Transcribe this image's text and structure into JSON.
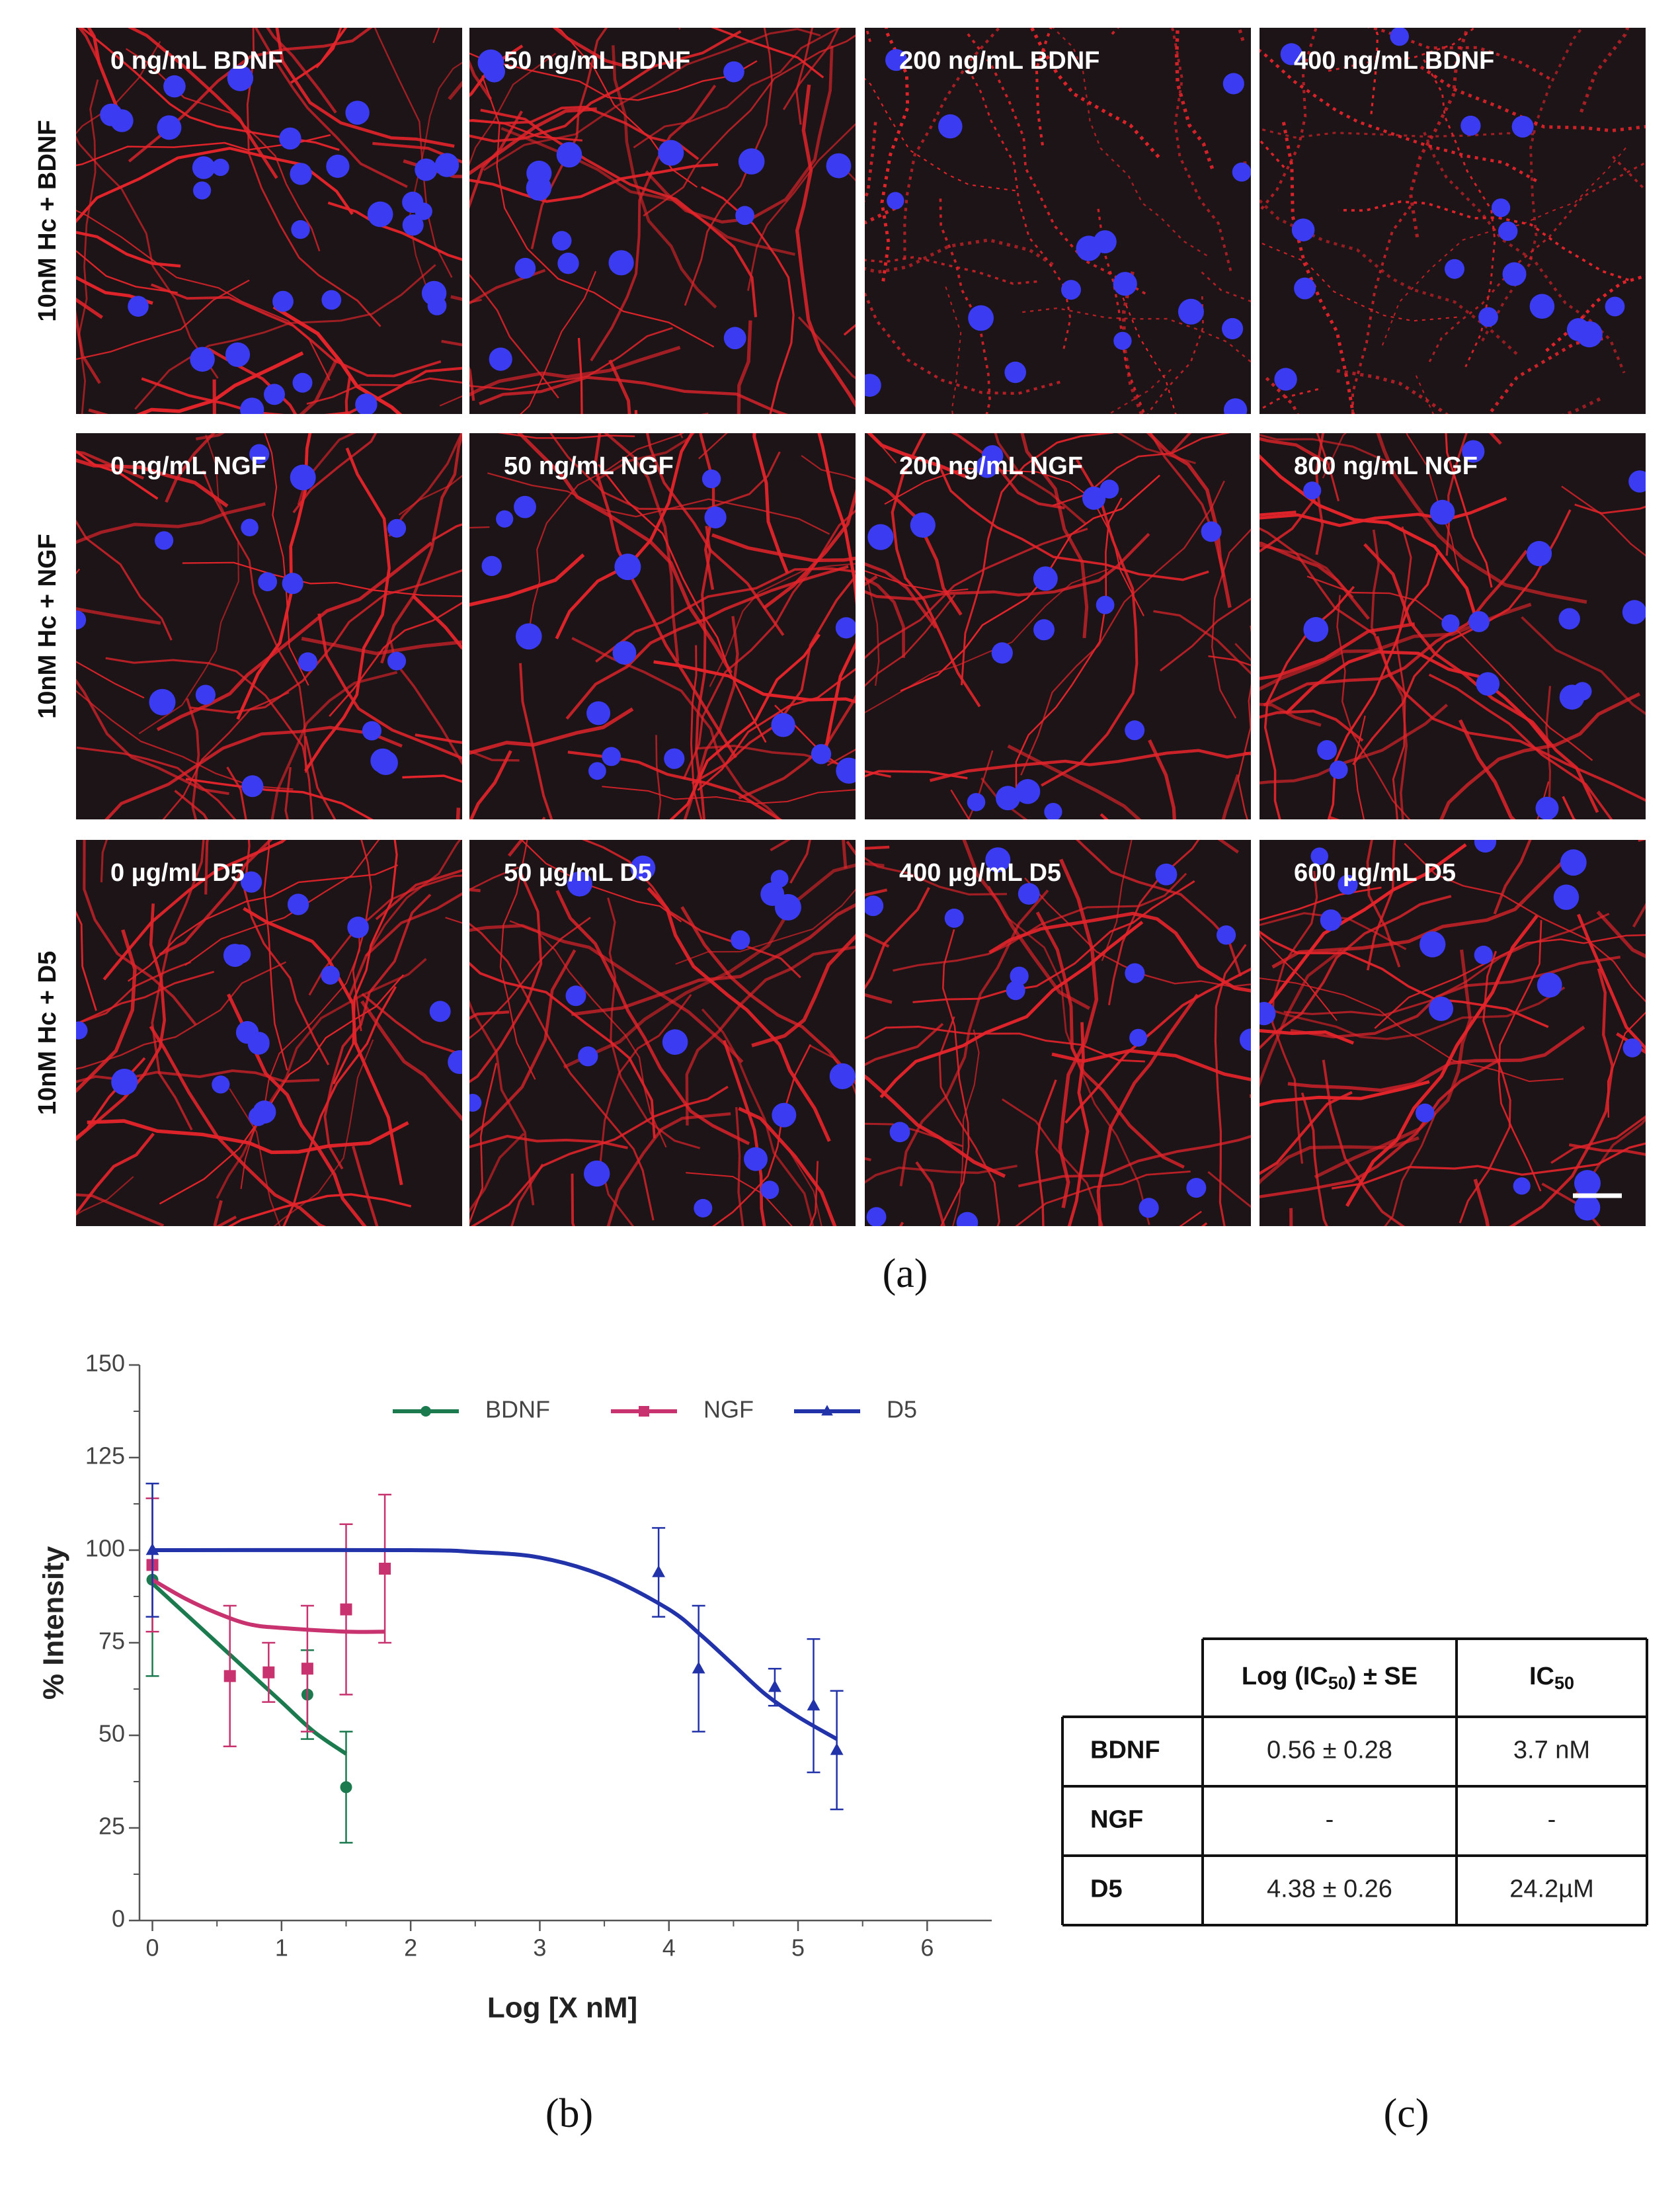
{
  "figure": {
    "panel_a": {
      "caption": "(a)",
      "rows": [
        {
          "label": "10nM Hc + BDNF",
          "images": [
            "0 ng/mL BDNF",
            "50 ng/mL BDNF",
            "200 ng/mL BDNF",
            "400 ng/mL BDNF"
          ]
        },
        {
          "label": "10nM Hc + NGF",
          "images": [
            "0 ng/mL NGF",
            "50 ng/mL NGF",
            "200 ng/mL NGF",
            "800 ng/mL NGF"
          ]
        },
        {
          "label": "10nM Hc + D5",
          "images": [
            "0 µg/mL D5",
            "50 µg/mL D5",
            "400 µg/mL D5",
            "600 µg/mL D5"
          ]
        }
      ]
    },
    "panel_b": {
      "caption": "(b)"
    },
    "panel_c": {
      "caption": "(c)"
    }
  },
  "chart_data": {
    "type": "scatter",
    "xlabel": "Log [X nM]",
    "ylabel": "% Intensity",
    "xlim": [
      -0.1,
      6.5
    ],
    "ylim": [
      0,
      150
    ],
    "xticks": [
      0,
      1,
      2,
      3,
      4,
      5,
      6
    ],
    "yticks": [
      0,
      25,
      50,
      75,
      100,
      125,
      150
    ],
    "legend": "top",
    "series": [
      {
        "name": "BDNF",
        "color": "#1b7a4e",
        "marker": "circle",
        "x": [
          0,
          1.2,
          1.5
        ],
        "values": [
          92,
          61,
          36
        ],
        "errors": [
          26,
          12,
          15
        ],
        "fit": {
          "x": [
            0,
            0.25,
            0.5,
            0.75,
            1,
            1.25,
            1.5
          ],
          "values": [
            91,
            83,
            75,
            67,
            59,
            51,
            45
          ]
        }
      },
      {
        "name": "NGF",
        "color": "#c8326e",
        "marker": "square",
        "x": [
          0,
          0.6,
          0.9,
          1.2,
          1.5,
          1.8
        ],
        "values": [
          96,
          66,
          67,
          68,
          84,
          95
        ],
        "errors": [
          18,
          19,
          8,
          17,
          23,
          20
        ],
        "fit": {
          "x": [
            0,
            0.25,
            0.5,
            0.75,
            1,
            1.5,
            1.8
          ],
          "values": [
            92,
            87,
            83,
            80,
            79,
            78,
            78
          ]
        }
      },
      {
        "name": "D5",
        "color": "#2233aa",
        "marker": "triangle",
        "x": [
          0,
          3.92,
          4.23,
          4.82,
          5.12,
          5.3
        ],
        "values": [
          100,
          94,
          68,
          63,
          58,
          46
        ],
        "errors": [
          18,
          12,
          17,
          5,
          18,
          16
        ],
        "fit": {
          "x": [
            0,
            2,
            2.5,
            3,
            3.5,
            4,
            4.25,
            4.5,
            4.75,
            5,
            5.3
          ],
          "values": [
            100,
            100,
            99.5,
            98,
            93,
            84,
            77,
            69,
            61,
            55,
            49
          ]
        }
      }
    ]
  },
  "table": {
    "columns": [
      {
        "text": "Log (IC",
        "sub": "50",
        "tail": ") ± SE"
      },
      {
        "text": "IC",
        "sub": "50"
      }
    ],
    "rows": [
      [
        "BDNF",
        "0.56 ± 0.28",
        "3.7 nM"
      ],
      [
        "NGF",
        "-",
        "-"
      ],
      [
        "D5",
        "4.38 ± 0.26",
        "24.2µM"
      ]
    ]
  }
}
